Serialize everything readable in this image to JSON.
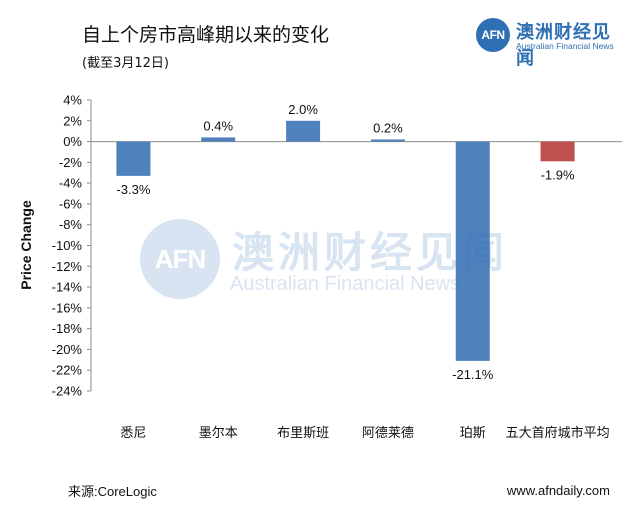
{
  "header": {
    "title": "自上个房市高峰期以来的变化",
    "subtitle": "(截至3月12日)"
  },
  "brand": {
    "logo_text": "AFN",
    "name_cn": "澳洲财经见闻",
    "name_en": "Australian Financial News",
    "color": "#2f6fb3"
  },
  "watermark": {
    "logo_text": "AFN",
    "name_cn": "澳洲财经见闻",
    "name_en": "Australian Financial News"
  },
  "footer": {
    "source": "来源:CoreLogic",
    "site": "www.afndaily.com"
  },
  "chart_data": {
    "type": "bar",
    "title": "自上个房市高峰期以来的变化",
    "subtitle": "(截至3月12日)",
    "xlabel": "",
    "ylabel": "Price Change",
    "ylim": [
      -24,
      4
    ],
    "ytick_step": 2,
    "ytick_suffix": "%",
    "grid": false,
    "categories": [
      "悉尼",
      "墨尔本",
      "布里斯班",
      "阿德莱德",
      "珀斯",
      "五大首府城市平均"
    ],
    "values": [
      -3.3,
      0.4,
      2.0,
      0.2,
      -21.1,
      -1.9
    ],
    "value_labels": [
      "-3.3%",
      "0.4%",
      "2.0%",
      "0.2%",
      "-21.1%",
      "-1.9%"
    ],
    "bar_colors": [
      "#4f81bd",
      "#4f81bd",
      "#4f81bd",
      "#4f81bd",
      "#4f81bd",
      "#c0504d"
    ]
  }
}
